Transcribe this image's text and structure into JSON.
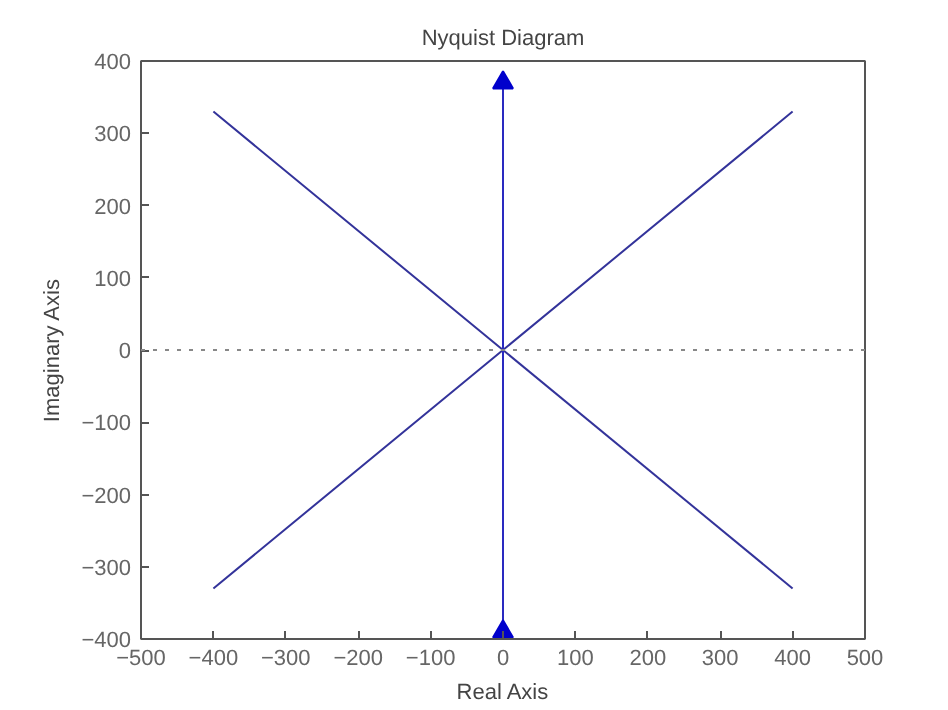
{
  "chart_data": {
    "type": "line",
    "title": "Nyquist Diagram",
    "xlabel": "Real Axis",
    "ylabel": "Imaginary Axis",
    "series": [
      {
        "color": "#33339a",
        "x": [
          -400,
          0,
          400
        ],
        "values": [
          330,
          0,
          -330
        ]
      },
      {
        "color": "#33339a",
        "x": [
          -400,
          0,
          400
        ],
        "values": [
          -330,
          0,
          330
        ]
      },
      {
        "color": "#2a2ac0",
        "x": [
          0,
          0
        ],
        "values": [
          -390,
          370
        ]
      },
      {
        "type": "scatter",
        "marker": "triangle",
        "color": "#0000cc",
        "x": [
          0,
          0
        ],
        "values": [
          370,
          -390
        ]
      }
    ],
    "xlim": [
      -500,
      500
    ],
    "ylim": [
      -400,
      400
    ],
    "xticks": [
      -500,
      -400,
      -300,
      -200,
      -100,
      0,
      100,
      200,
      300,
      400,
      500
    ],
    "yticks": [
      -400,
      -300,
      -200,
      -100,
      0,
      100,
      200,
      300,
      400
    ],
    "ref_lines": [
      {
        "axis": "y",
        "value": 0,
        "color": "#888888",
        "line_style": "dotted"
      }
    ],
    "grid": false,
    "marker": "none",
    "line_style": "solid"
  }
}
